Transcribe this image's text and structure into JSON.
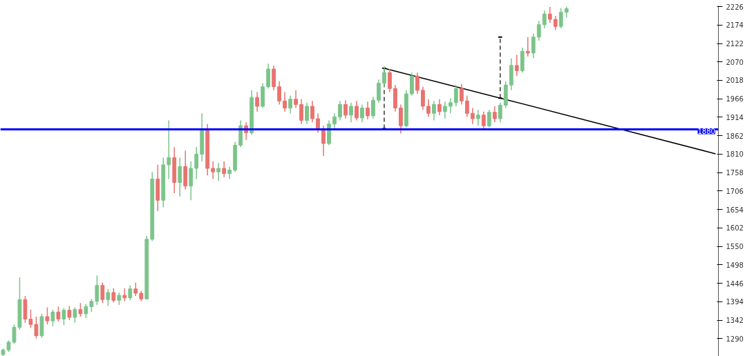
{
  "chart_data": {
    "type": "candlestick",
    "categories": [
      null,
      null,
      null,
      null,
      null,
      null,
      null,
      null,
      null,
      null,
      null,
      null,
      null,
      null,
      null,
      null,
      null,
      null,
      null,
      null,
      null,
      null,
      null,
      null,
      null,
      null,
      null,
      null,
      null,
      null,
      null,
      null,
      null,
      null,
      null,
      null,
      null,
      null,
      null,
      null,
      null,
      null,
      null,
      null,
      null,
      null,
      null,
      null,
      null,
      null,
      null,
      null,
      null,
      null,
      null,
      null,
      null,
      null,
      null,
      null,
      null,
      null,
      null,
      null,
      null,
      null,
      null,
      null,
      null,
      null,
      null,
      null,
      null,
      null,
      null,
      null,
      null,
      null,
      null,
      null,
      null,
      null,
      null,
      null,
      null,
      null,
      null,
      null,
      null,
      null,
      null,
      null,
      null,
      null,
      null,
      null,
      null,
      null,
      null,
      null,
      null,
      null,
      null,
      null,
      null,
      null,
      null,
      null,
      null,
      null,
      null,
      null,
      null,
      null,
      null,
      null,
      null,
      null,
      null,
      null,
      null,
      null,
      null,
      null,
      null,
      null,
      null,
      null,
      null,
      null
    ],
    "ohlc": [
      [
        1245,
        1262,
        1240,
        1258
      ],
      [
        1258,
        1285,
        1252,
        1280
      ],
      [
        1280,
        1330,
        1275,
        1322
      ],
      [
        1322,
        1462,
        1315,
        1400
      ],
      [
        1400,
        1410,
        1335,
        1345
      ],
      [
        1345,
        1372,
        1320,
        1330
      ],
      [
        1330,
        1352,
        1290,
        1298
      ],
      [
        1298,
        1360,
        1292,
        1352
      ],
      [
        1352,
        1378,
        1330,
        1340
      ],
      [
        1340,
        1372,
        1325,
        1365
      ],
      [
        1365,
        1380,
        1338,
        1345
      ],
      [
        1345,
        1376,
        1328,
        1370
      ],
      [
        1370,
        1382,
        1342,
        1350
      ],
      [
        1350,
        1378,
        1335,
        1372
      ],
      [
        1372,
        1390,
        1352,
        1360
      ],
      [
        1360,
        1388,
        1348,
        1380
      ],
      [
        1380,
        1402,
        1365,
        1395
      ],
      [
        1395,
        1468,
        1385,
        1440
      ],
      [
        1440,
        1448,
        1390,
        1400
      ],
      [
        1400,
        1430,
        1382,
        1420
      ],
      [
        1420,
        1432,
        1392,
        1398
      ],
      [
        1398,
        1420,
        1385,
        1412
      ],
      [
        1412,
        1432,
        1395,
        1405
      ],
      [
        1405,
        1440,
        1398,
        1430
      ],
      [
        1430,
        1448,
        1410,
        1418
      ],
      [
        1418,
        1425,
        1395,
        1402
      ],
      [
        1402,
        1580,
        1400,
        1570
      ],
      [
        1570,
        1760,
        1565,
        1740
      ],
      [
        1740,
        1780,
        1650,
        1680
      ],
      [
        1680,
        1800,
        1660,
        1780
      ],
      [
        1780,
        1905,
        1740,
        1800
      ],
      [
        1800,
        1830,
        1700,
        1730
      ],
      [
        1730,
        1800,
        1690,
        1775
      ],
      [
        1775,
        1820,
        1710,
        1720
      ],
      [
        1720,
        1790,
        1680,
        1770
      ],
      [
        1770,
        1830,
        1740,
        1810
      ],
      [
        1810,
        1925,
        1790,
        1880
      ],
      [
        1880,
        1895,
        1750,
        1770
      ],
      [
        1770,
        1790,
        1740,
        1760
      ],
      [
        1760,
        1785,
        1735,
        1770
      ],
      [
        1770,
        1790,
        1745,
        1755
      ],
      [
        1755,
        1775,
        1740,
        1765
      ],
      [
        1765,
        1845,
        1760,
        1835
      ],
      [
        1835,
        1905,
        1830,
        1890
      ],
      [
        1890,
        1900,
        1850,
        1870
      ],
      [
        1870,
        1990,
        1865,
        1970
      ],
      [
        1970,
        1985,
        1930,
        1945
      ],
      [
        1945,
        2010,
        1940,
        2000
      ],
      [
        2000,
        2065,
        1995,
        2050
      ],
      [
        2050,
        2060,
        1990,
        2000
      ],
      [
        2000,
        2015,
        1950,
        1960
      ],
      [
        1960,
        1985,
        1930,
        1940
      ],
      [
        1940,
        1975,
        1925,
        1965
      ],
      [
        1965,
        1990,
        1940,
        1950
      ],
      [
        1950,
        1965,
        1895,
        1905
      ],
      [
        1905,
        1955,
        1895,
        1945
      ],
      [
        1945,
        1960,
        1900,
        1910
      ],
      [
        1910,
        1925,
        1870,
        1880
      ],
      [
        1880,
        1890,
        1805,
        1840
      ],
      [
        1840,
        1905,
        1835,
        1895
      ],
      [
        1895,
        1925,
        1880,
        1915
      ],
      [
        1915,
        1960,
        1905,
        1950
      ],
      [
        1950,
        1962,
        1910,
        1920
      ],
      [
        1920,
        1955,
        1900,
        1945
      ],
      [
        1945,
        1960,
        1905,
        1912
      ],
      [
        1912,
        1950,
        1900,
        1940
      ],
      [
        1940,
        1958,
        1908,
        1918
      ],
      [
        1918,
        1972,
        1910,
        1962
      ],
      [
        1962,
        2020,
        1955,
        2010
      ],
      [
        2010,
        2058,
        2000,
        2040
      ],
      [
        2040,
        2050,
        1985,
        1995
      ],
      [
        1995,
        2005,
        1930,
        1940
      ],
      [
        1940,
        1950,
        1868,
        1890
      ],
      [
        1890,
        1990,
        1885,
        1980
      ],
      [
        1980,
        2040,
        1975,
        2030
      ],
      [
        2030,
        2040,
        1980,
        1990
      ],
      [
        1990,
        2000,
        1935,
        1945
      ],
      [
        1945,
        1965,
        1915,
        1925
      ],
      [
        1925,
        1960,
        1905,
        1950
      ],
      [
        1950,
        1965,
        1920,
        1930
      ],
      [
        1930,
        1958,
        1910,
        1945
      ],
      [
        1945,
        1968,
        1925,
        1955
      ],
      [
        1955,
        2005,
        1945,
        1995
      ],
      [
        1995,
        2008,
        1950,
        1960
      ],
      [
        1960,
        1975,
        1915,
        1925
      ],
      [
        1925,
        1940,
        1895,
        1910
      ],
      [
        1910,
        1935,
        1890,
        1920
      ],
      [
        1920,
        1930,
        1880,
        1890
      ],
      [
        1890,
        1935,
        1885,
        1928
      ],
      [
        1928,
        1945,
        1900,
        1910
      ],
      [
        1910,
        1955,
        1900,
        1948
      ],
      [
        1948,
        2015,
        1940,
        2005
      ],
      [
        2005,
        2080,
        1990,
        2060
      ],
      [
        2060,
        2090,
        2030,
        2045
      ],
      [
        2045,
        2110,
        2040,
        2100
      ],
      [
        2100,
        2140,
        2085,
        2095
      ],
      [
        2095,
        2150,
        2080,
        2140
      ],
      [
        2140,
        2185,
        2130,
        2175
      ],
      [
        2175,
        2215,
        2165,
        2205
      ],
      [
        2205,
        2225,
        2180,
        2190
      ],
      [
        2190,
        2200,
        2160,
        2170
      ],
      [
        2170,
        2222,
        2165,
        2210
      ],
      [
        2210,
        2226,
        2195,
        2220
      ],
      null,
      null,
      null,
      null,
      null,
      null,
      null,
      null,
      null,
      null,
      null,
      null,
      null,
      null,
      null,
      null,
      null,
      null,
      null,
      null,
      null,
      null,
      null,
      null,
      null,
      null,
      null
    ],
    "colors": [
      "#7cc48a",
      "#7cc48a",
      "#7cc48a",
      "#7cc48a",
      "#e8736f",
      "#e8736f",
      "#e8736f",
      "#7cc48a",
      "#e8736f",
      "#7cc48a",
      "#e8736f",
      "#7cc48a",
      "#e8736f",
      "#7cc48a",
      "#e8736f",
      "#7cc48a",
      "#7cc48a",
      "#7cc48a",
      "#e8736f",
      "#7cc48a",
      "#e8736f",
      "#7cc48a",
      "#e8736f",
      "#7cc48a",
      "#e8736f",
      "#e8736f",
      "#7cc48a",
      "#7cc48a",
      "#e8736f",
      "#7cc48a",
      "#7cc48a",
      "#e8736f",
      "#7cc48a",
      "#e8736f",
      "#7cc48a",
      "#7cc48a",
      "#7cc48a",
      "#e8736f",
      "#e8736f",
      "#7cc48a",
      "#e8736f",
      "#7cc48a",
      "#7cc48a",
      "#7cc48a",
      "#e8736f",
      "#7cc48a",
      "#e8736f",
      "#7cc48a",
      "#7cc48a",
      "#e8736f",
      "#e8736f",
      "#e8736f",
      "#7cc48a",
      "#e8736f",
      "#e8736f",
      "#7cc48a",
      "#e8736f",
      "#e8736f",
      "#e8736f",
      "#7cc48a",
      "#7cc48a",
      "#7cc48a",
      "#e8736f",
      "#7cc48a",
      "#e8736f",
      "#7cc48a",
      "#e8736f",
      "#7cc48a",
      "#7cc48a",
      "#7cc48a",
      "#e8736f",
      "#e8736f",
      "#e8736f",
      "#7cc48a",
      "#7cc48a",
      "#e8736f",
      "#e8736f",
      "#e8736f",
      "#7cc48a",
      "#e8736f",
      "#7cc48a",
      "#7cc48a",
      "#7cc48a",
      "#e8736f",
      "#e8736f",
      "#e8736f",
      "#7cc48a",
      "#e8736f",
      "#7cc48a",
      "#e8736f",
      "#7cc48a",
      "#7cc48a",
      "#7cc48a",
      "#e8736f",
      "#7cc48a",
      "#e8736f",
      "#7cc48a",
      "#7cc48a",
      "#7cc48a",
      "#e8736f",
      "#e8736f",
      "#7cc48a",
      "#7cc48a",
      null,
      null,
      null,
      null,
      null,
      null,
      null,
      null,
      null,
      null,
      null,
      null,
      null,
      null,
      null,
      null,
      null,
      null,
      null,
      null,
      null,
      null,
      null,
      null,
      null,
      null,
      null
    ],
    "series": [
      {
        "type": "line",
        "color": "#000000",
        "line_style": "solid",
        "values": [
          null,
          null,
          null,
          null,
          null,
          null,
          null,
          null,
          null,
          null,
          null,
          null,
          null,
          null,
          null,
          null,
          null,
          null,
          null,
          null,
          null,
          null,
          null,
          null,
          null,
          null,
          null,
          null,
          null,
          null,
          null,
          null,
          null,
          null,
          null,
          null,
          null,
          null,
          null,
          null,
          null,
          null,
          null,
          null,
          null,
          null,
          null,
          null,
          null,
          null,
          null,
          null,
          null,
          null,
          null,
          null,
          null,
          null,
          null,
          null,
          null,
          null,
          null,
          null,
          null,
          null,
          null,
          null,
          null,
          2052,
          null,
          null,
          null,
          null,
          null,
          null,
          null,
          null,
          null,
          null,
          null,
          null,
          null,
          null,
          null,
          null,
          null,
          null,
          null,
          null,
          1968,
          null,
          null,
          null,
          null,
          null,
          null,
          null,
          null,
          null,
          null,
          null,
          null,
          null,
          null,
          null,
          null,
          null,
          null,
          null,
          null,
          null,
          null,
          null,
          null,
          null,
          null,
          null,
          null,
          null,
          null,
          null,
          null,
          null,
          null,
          null,
          null,
          null,
          null,
          1811
        ],
        "errors": [
          null,
          null,
          null,
          null,
          null,
          null,
          null,
          null,
          null,
          null,
          null,
          null,
          null,
          null,
          null,
          null,
          null,
          null,
          null,
          null,
          null,
          null,
          null,
          null,
          null,
          null,
          null,
          null,
          null,
          null,
          null,
          null,
          null,
          null,
          null,
          null,
          null,
          null,
          null,
          null,
          null,
          null,
          null,
          null,
          null,
          null,
          null,
          null,
          null,
          null,
          null,
          null,
          null,
          null,
          null,
          null,
          null,
          null,
          null,
          null,
          null,
          null,
          null,
          null,
          null,
          null,
          null,
          null,
          null,
          [
            1882,
            2052
          ],
          null,
          null,
          null,
          null,
          null,
          null,
          null,
          null,
          null,
          null,
          null,
          null,
          null,
          null,
          null,
          null,
          null,
          null,
          null,
          null,
          [
            1968,
            2140
          ],
          null,
          null,
          null,
          null,
          null,
          null,
          null,
          null,
          null,
          null,
          null,
          null,
          null,
          null,
          null,
          null,
          null,
          null,
          null,
          null,
          null,
          null,
          null,
          null,
          null,
          null,
          null,
          null,
          null,
          null,
          null,
          null,
          null,
          null,
          null,
          null,
          null,
          null,
          null
        ]
      }
    ],
    "ref_lines": [
      {
        "axis": "y",
        "value": 1880,
        "label": "1880",
        "color": "#0000ff"
      }
    ],
    "ylim": [
      1240,
      2228
    ],
    "yticks": [
      1290,
      1342,
      1394,
      1446,
      1498,
      1550,
      1602,
      1654,
      1706,
      1758,
      1810,
      1862,
      1914,
      1966,
      2018,
      2070,
      2122,
      2174,
      2226
    ],
    "tick_labels": "y",
    "grid": false
  }
}
